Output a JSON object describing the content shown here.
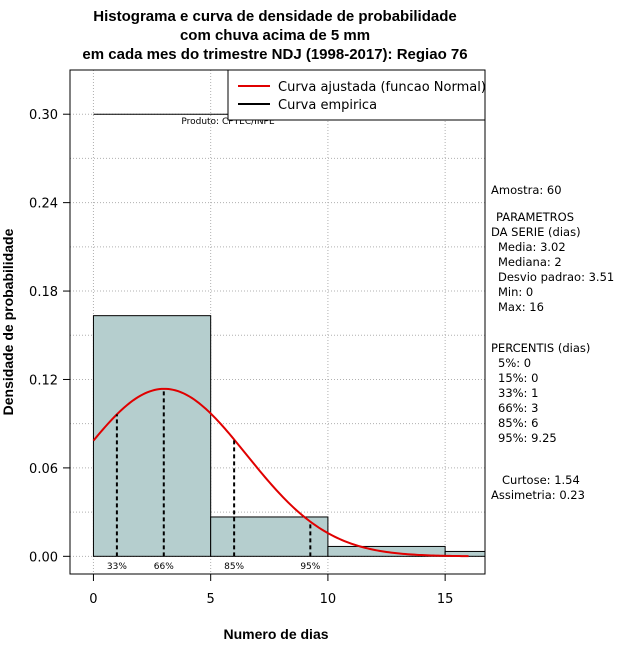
{
  "chart_data": {
    "type": "bar",
    "title_lines": [
      "Histograma e curva de densidade de probabilidade",
      "com chuva acima de 5 mm",
      "em cada mes do trimestre NDJ (1998-2017): Regiao 76"
    ],
    "xlabel": "Numero de dias",
    "ylabel": "Densidade de probabilidade",
    "xlim": [
      -1,
      16.7
    ],
    "ylim": [
      -0.012,
      0.33
    ],
    "x_ticks": [
      0,
      5,
      10,
      15
    ],
    "y_ticks": [
      0.0,
      0.06,
      0.12,
      0.18,
      0.24,
      0.3
    ],
    "y_tick_labels": [
      "0.00",
      "0.06",
      "0.12",
      "0.18",
      "0.24",
      "0.30"
    ],
    "grid": true,
    "bins": [
      {
        "start": 0,
        "end": 5,
        "density": 0.1633
      },
      {
        "start": 5,
        "end": 10,
        "density": 0.0267
      },
      {
        "start": 10,
        "end": 15,
        "density": 0.0067
      },
      {
        "start": 15,
        "end": 20,
        "density": 0.0033
      }
    ],
    "series": [
      {
        "name": "Curva ajustada (funcao Normal)",
        "color": "#e00000",
        "distribution": "normal",
        "mean": 3.02,
        "sd": 3.51,
        "x_range": [
          0,
          16
        ]
      },
      {
        "name": "Curva empirica",
        "color": "#000000"
      }
    ],
    "percentile_lines": [
      {
        "label": "33%",
        "x": 1
      },
      {
        "label": "66%",
        "x": 3
      },
      {
        "label": "85%",
        "x": 6
      },
      {
        "label": "95%",
        "x": 9.25
      }
    ],
    "annotation": "Produto: CPTEC/INPE",
    "legend_position": "top-right",
    "bar_color": "#b5cece"
  },
  "stats": {
    "amostra": "Amostra: 60",
    "param_header_1": "PARAMETROS",
    "param_header_2": "DA SERIE (dias)",
    "params": [
      "Media: 3.02",
      "Mediana: 2",
      "Desvio padrao: 3.51",
      "Min: 0",
      "Max: 16"
    ],
    "percentis_header": "PERCENTIS (dias)",
    "percentis": [
      "5%: 0",
      "15%: 0",
      "33%: 1",
      "66%: 3",
      "85%: 6",
      "95%: 9.25"
    ],
    "curtose": "Curtose: 1.54",
    "assimetria": "Assimetria: 0.23"
  }
}
